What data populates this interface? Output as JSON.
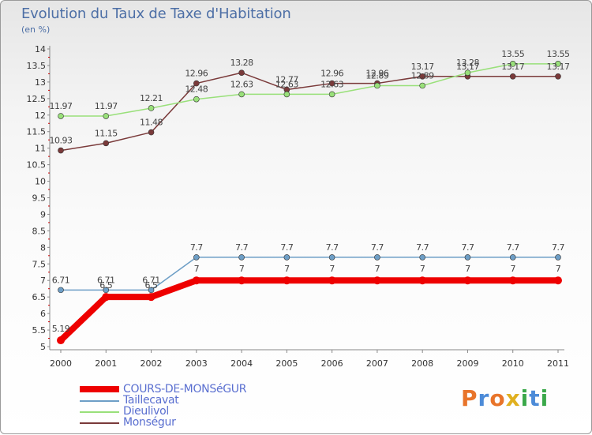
{
  "title": "Evolution du Taux de Taxe d'Habitation",
  "unit_label": "(en %)",
  "logo_text": "Proxiti",
  "chart_data": {
    "type": "line",
    "title": "Evolution du Taux de Taxe d'Habitation",
    "ylabel": "(en %)",
    "xlabel": "",
    "x": [
      "2000",
      "2001",
      "2002",
      "2003",
      "2004",
      "2005",
      "2006",
      "2007",
      "2008",
      "2009",
      "2010",
      "2011"
    ],
    "ylim": [
      5,
      14
    ],
    "yticks": [
      "5",
      "5.5",
      "6",
      "6.5",
      "7",
      "7.5",
      "8",
      "8.5",
      "9",
      "9.5",
      "10",
      "10.5",
      "11",
      "11.5",
      "12",
      "12.5",
      "13",
      "13.5",
      "14"
    ],
    "grid": false,
    "legend_position": "bottom-left",
    "series": [
      {
        "name": "COURS-DE-MONSéGUR",
        "color": "#ee0000",
        "values": [
          5.19,
          6.5,
          6.5,
          7,
          7,
          7,
          7,
          7,
          7,
          7,
          7,
          7
        ],
        "labels": [
          "5.19",
          "6.5",
          "6.5",
          "7",
          "7",
          "7",
          "7",
          "7",
          "7",
          "7",
          "7",
          "7"
        ]
      },
      {
        "name": "Taillecavat",
        "color": "#6d9ec6",
        "values": [
          6.71,
          6.71,
          6.71,
          7.7,
          7.7,
          7.7,
          7.7,
          7.7,
          7.7,
          7.7,
          7.7,
          7.7
        ],
        "labels": [
          "6.71",
          "6.71",
          "6.71",
          "7.7",
          "7.7",
          "7.7",
          "7.7",
          "7.7",
          "7.7",
          "7.7",
          "7.7",
          "7.7"
        ]
      },
      {
        "name": "Dieulivol",
        "color": "#99e07a",
        "values": [
          11.97,
          11.97,
          12.21,
          12.48,
          12.63,
          12.63,
          12.63,
          12.89,
          12.89,
          13.28,
          13.55,
          13.55
        ],
        "labels": [
          "11.97",
          "11.97",
          "12.21",
          "12.48",
          "12.63",
          "12.63",
          "12.63",
          "12.89",
          "12.89",
          "13.28",
          "13.55",
          "13.55"
        ]
      },
      {
        "name": "Monségur",
        "color": "#7a3a3a",
        "values": [
          10.93,
          11.15,
          11.48,
          12.96,
          13.28,
          12.77,
          12.96,
          12.96,
          13.17,
          13.17,
          13.17,
          13.17
        ],
        "labels": [
          "10.93",
          "11.15",
          "11.48",
          "12.96",
          "13.28",
          "12.77",
          "12.96",
          "12.96",
          "13.17",
          "13.17",
          "13.17",
          "13.17"
        ]
      }
    ]
  },
  "logo_colors": [
    "#e8742a",
    "#4c8bd8",
    "#e8742a",
    "#e0b020",
    "#3aa84a",
    "#4c8bd8",
    "#3aa84a"
  ]
}
